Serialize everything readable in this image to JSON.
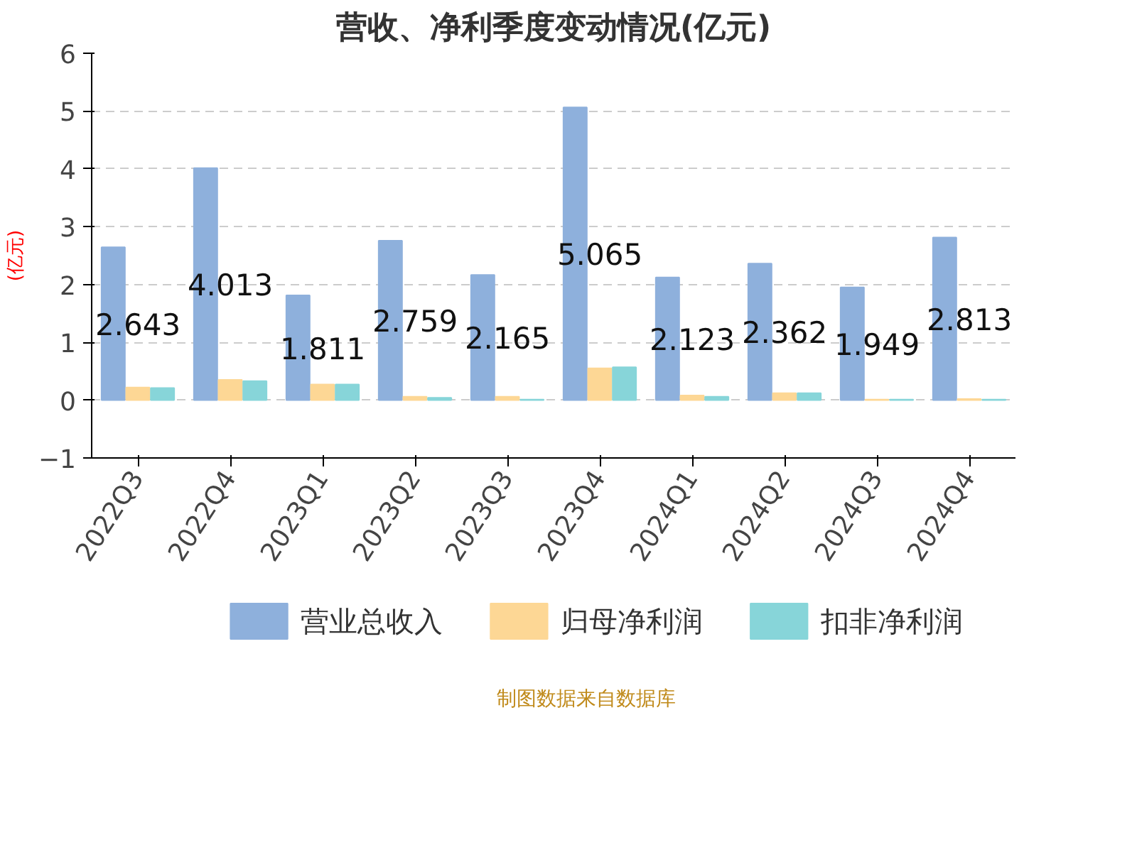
{
  "chart_data": {
    "type": "bar",
    "title": "营收、净利季度变动情况(亿元)",
    "ylabel": "(亿元)",
    "categories": [
      "2022Q3",
      "2022Q4",
      "2023Q1",
      "2023Q2",
      "2023Q3",
      "2023Q4",
      "2024Q1",
      "2024Q2",
      "2024Q3",
      "2024Q4"
    ],
    "series": [
      {
        "name": "营业总收入",
        "color": "#8eb0dc",
        "values": [
          2.643,
          4.013,
          1.811,
          2.759,
          2.165,
          5.065,
          2.123,
          2.362,
          1.949,
          2.813
        ],
        "value_labels": [
          "2.643",
          "4.013",
          "1.811",
          "2.759",
          "2.165",
          "5.065",
          "2.123",
          "2.362",
          "1.949",
          "2.813"
        ]
      },
      {
        "name": "归母净利润",
        "color": "#fdd795",
        "values": [
          0.22,
          0.35,
          0.27,
          0.06,
          0.06,
          0.55,
          0.08,
          0.12,
          0.01,
          0.02
        ]
      },
      {
        "name": "扣非净利润",
        "color": "#87d5d9",
        "values": [
          0.21,
          0.33,
          0.27,
          0.04,
          0.01,
          0.57,
          0.06,
          0.12,
          0.01,
          0.01
        ]
      }
    ],
    "ylim": [
      -1,
      6
    ],
    "yticks": [
      -1,
      0,
      1,
      2,
      3,
      4,
      5,
      6
    ],
    "grid": "y",
    "legend": "bottom",
    "annotations": [
      "制图数据来自数据库"
    ]
  }
}
